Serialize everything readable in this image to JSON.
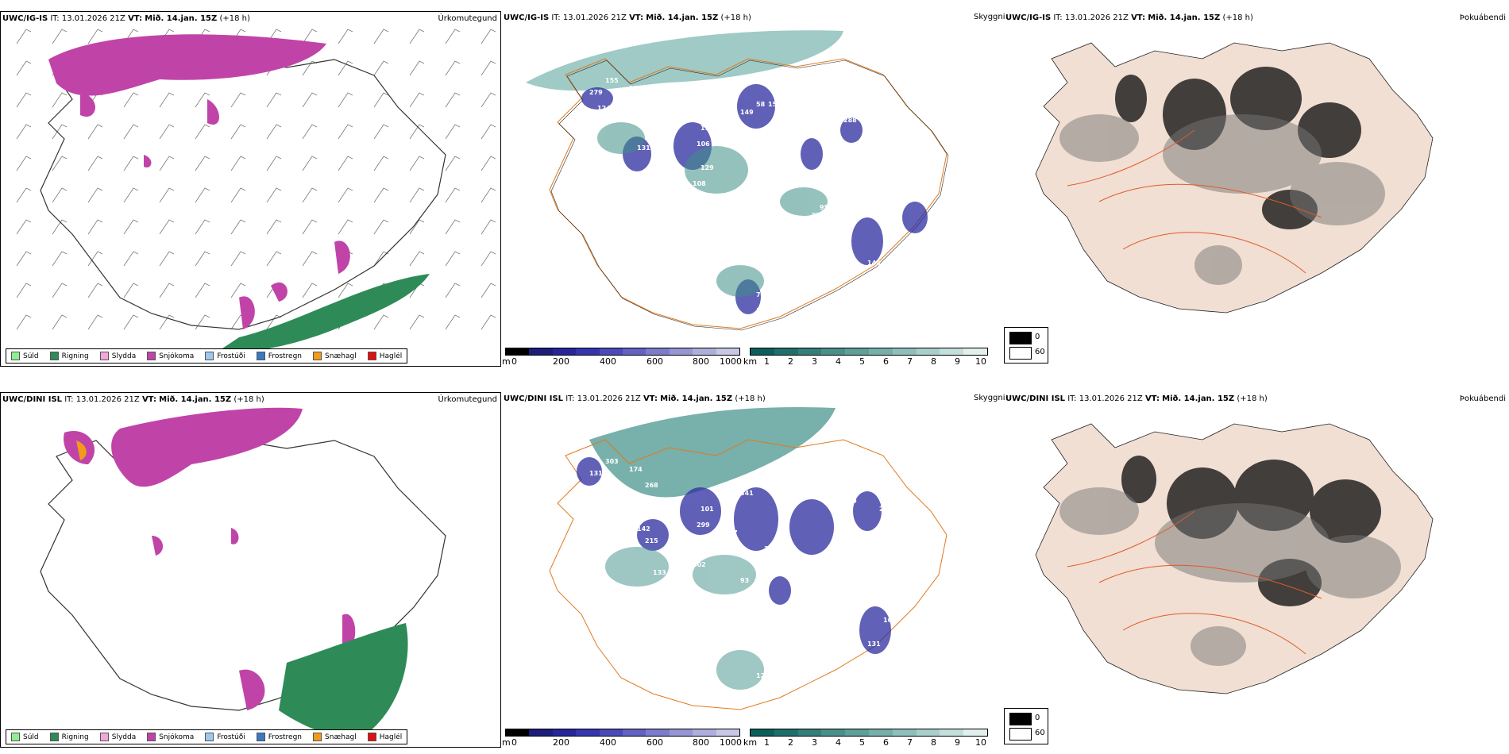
{
  "rows": [
    {
      "model": "UWC/IG-IS",
      "it_label": "IT:",
      "it_value": "13.01.2026 21Z",
      "vt_label": "VT:",
      "vt_value": "Mið. 14.jan. 15Z",
      "lead": "(+18 h)",
      "labels": [
        155,
        156,
        195,
        279,
        124,
        131,
        76,
        53,
        108,
        129,
        106,
        118,
        149,
        58,
        152,
        126,
        221,
        159,
        539,
        288,
        109,
        123,
        231,
        95,
        97,
        31,
        102,
        149,
        238,
        75,
        127,
        19,
        83
      ]
    },
    {
      "model": "UWC/DINI ISL",
      "it_label": "IT:",
      "it_value": "13.01.2026 21Z",
      "vt_label": "VT:",
      "vt_value": "Mið. 14.jan. 15Z",
      "lead": "(+18 h)",
      "labels": [
        303,
        174,
        268,
        131,
        335,
        142,
        133,
        165,
        402,
        214,
        299,
        101,
        341,
        175,
        189,
        208,
        282,
        252,
        129,
        319,
        207,
        229,
        177,
        129,
        241,
        151,
        164,
        131,
        159,
        125,
        218,
        93,
        238,
        247,
        126,
        10,
        215
      ]
    }
  ],
  "panel_titles": {
    "precip": "Úrkomutegund",
    "visibility": "Skyggni",
    "fog": "Þokuábendi"
  },
  "precip_legend": [
    {
      "label": "Súld",
      "color": "#90ee90"
    },
    {
      "label": "Rigning",
      "color": "#2e8b57"
    },
    {
      "label": "Slydda",
      "color": "#f4a6d7"
    },
    {
      "label": "Snjókoma",
      "color": "#c044a8"
    },
    {
      "label": "Frostúði",
      "color": "#9ec9ef"
    },
    {
      "label": "Frostregn",
      "color": "#3a78c3"
    },
    {
      "label": "Snæhagl",
      "color": "#f29a1a"
    },
    {
      "label": "Haglél",
      "color": "#e01010"
    }
  ],
  "height_bar": {
    "unit": "m",
    "ticks": [
      "0",
      "200",
      "400",
      "600",
      "800",
      "1000"
    ],
    "colors": [
      "#000000",
      "#1d1d7a",
      "#26269a",
      "#3535ae",
      "#4a4ab8",
      "#6262c2",
      "#7c7ccb",
      "#9696d4",
      "#afafdd",
      "#c8c8e6"
    ]
  },
  "vis_bar": {
    "unit": "km",
    "ticks": [
      "1",
      "2",
      "3",
      "4",
      "5",
      "6",
      "7",
      "8",
      "9",
      "10"
    ],
    "colors": [
      "#0d5f5a",
      "#216f6a",
      "#357f7a",
      "#4a8f8a",
      "#5e9f9a",
      "#76afaa",
      "#8fbfba",
      "#a8cfca",
      "#c3dfdb",
      "#e1efed"
    ]
  },
  "fog_key": {
    "black": "0",
    "white": "60"
  }
}
